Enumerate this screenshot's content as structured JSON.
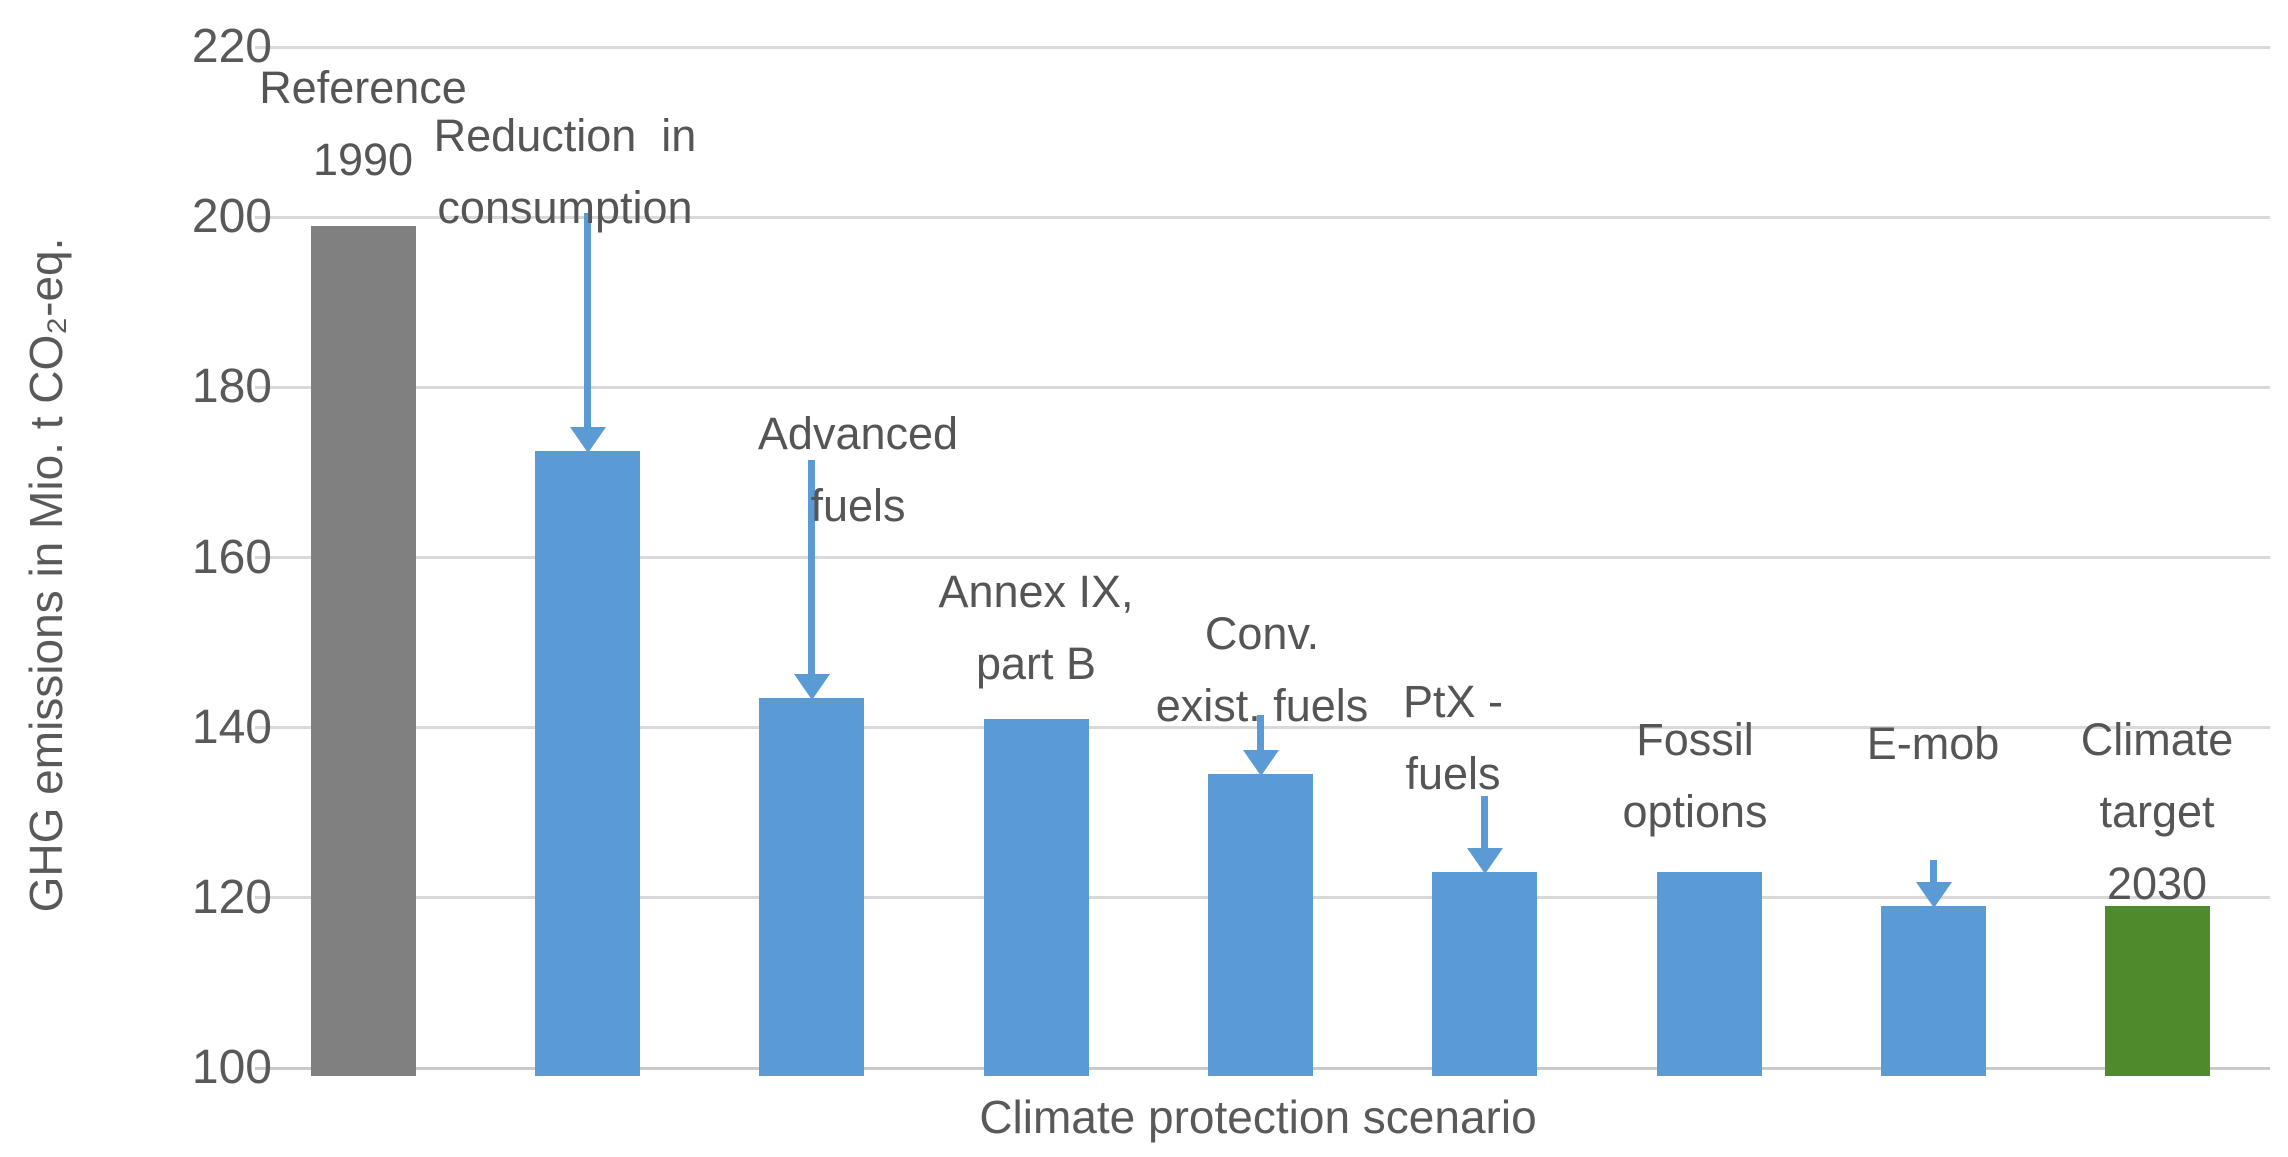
{
  "chart_data": {
    "type": "bar",
    "title": "",
    "xlabel": "Climate protection scenario",
    "ylabel": "GHG emissions in Mio. t CO₂-eq.",
    "ylim": [
      100,
      220
    ],
    "yticks": [
      100,
      120,
      140,
      160,
      180,
      200,
      220
    ],
    "grid": "horizontal-light-gray",
    "legend": "none",
    "categories": [
      "Reference 1990",
      "Reduction in consumption",
      "Advanced fuels",
      "Annex IX, part B",
      "Conv. exist. fuels",
      "PtX - fuels",
      "Fossil options",
      "E-mob",
      "Climate target 2030"
    ],
    "values": [
      199,
      172.5,
      143.5,
      141,
      134.5,
      123,
      123,
      119,
      119
    ],
    "bar_colors": [
      "#808080",
      "#5B9BD5",
      "#5B9BD5",
      "#5B9BD5",
      "#5B9BD5",
      "#5B9BD5",
      "#5B9BD5",
      "#5B9BD5",
      "#4F8A2D"
    ],
    "series_color_meaning": {
      "reference": "#808080",
      "scenario_step": "#5B9BD5",
      "climate_target": "#4F8A2D"
    },
    "category_label_lines": [
      [
        "Reference",
        "1990"
      ],
      [
        "Reduction  in",
        "consumption"
      ],
      [
        "Advanced",
        "fuels"
      ],
      [
        "Annex IX,",
        "part B"
      ],
      [
        "Conv.",
        "exist. fuels"
      ],
      [
        "PtX -",
        "fuels"
      ],
      [
        "Fossil",
        "options"
      ],
      [
        "E-mob"
      ],
      [
        "Climate",
        "target",
        "2030"
      ]
    ],
    "arrows": [
      {
        "category_index": 1,
        "from_value": 200.5
      },
      {
        "category_index": 2,
        "from_value": 171.5
      },
      {
        "category_index": 4,
        "from_value": 141.5
      },
      {
        "category_index": 5,
        "from_value": 132
      },
      {
        "category_index": 7,
        "from_value": 124.5
      }
    ],
    "arrow_color": "#5B9BD5",
    "gridline_color": "#d9d9d9",
    "text_color": "#595959"
  }
}
